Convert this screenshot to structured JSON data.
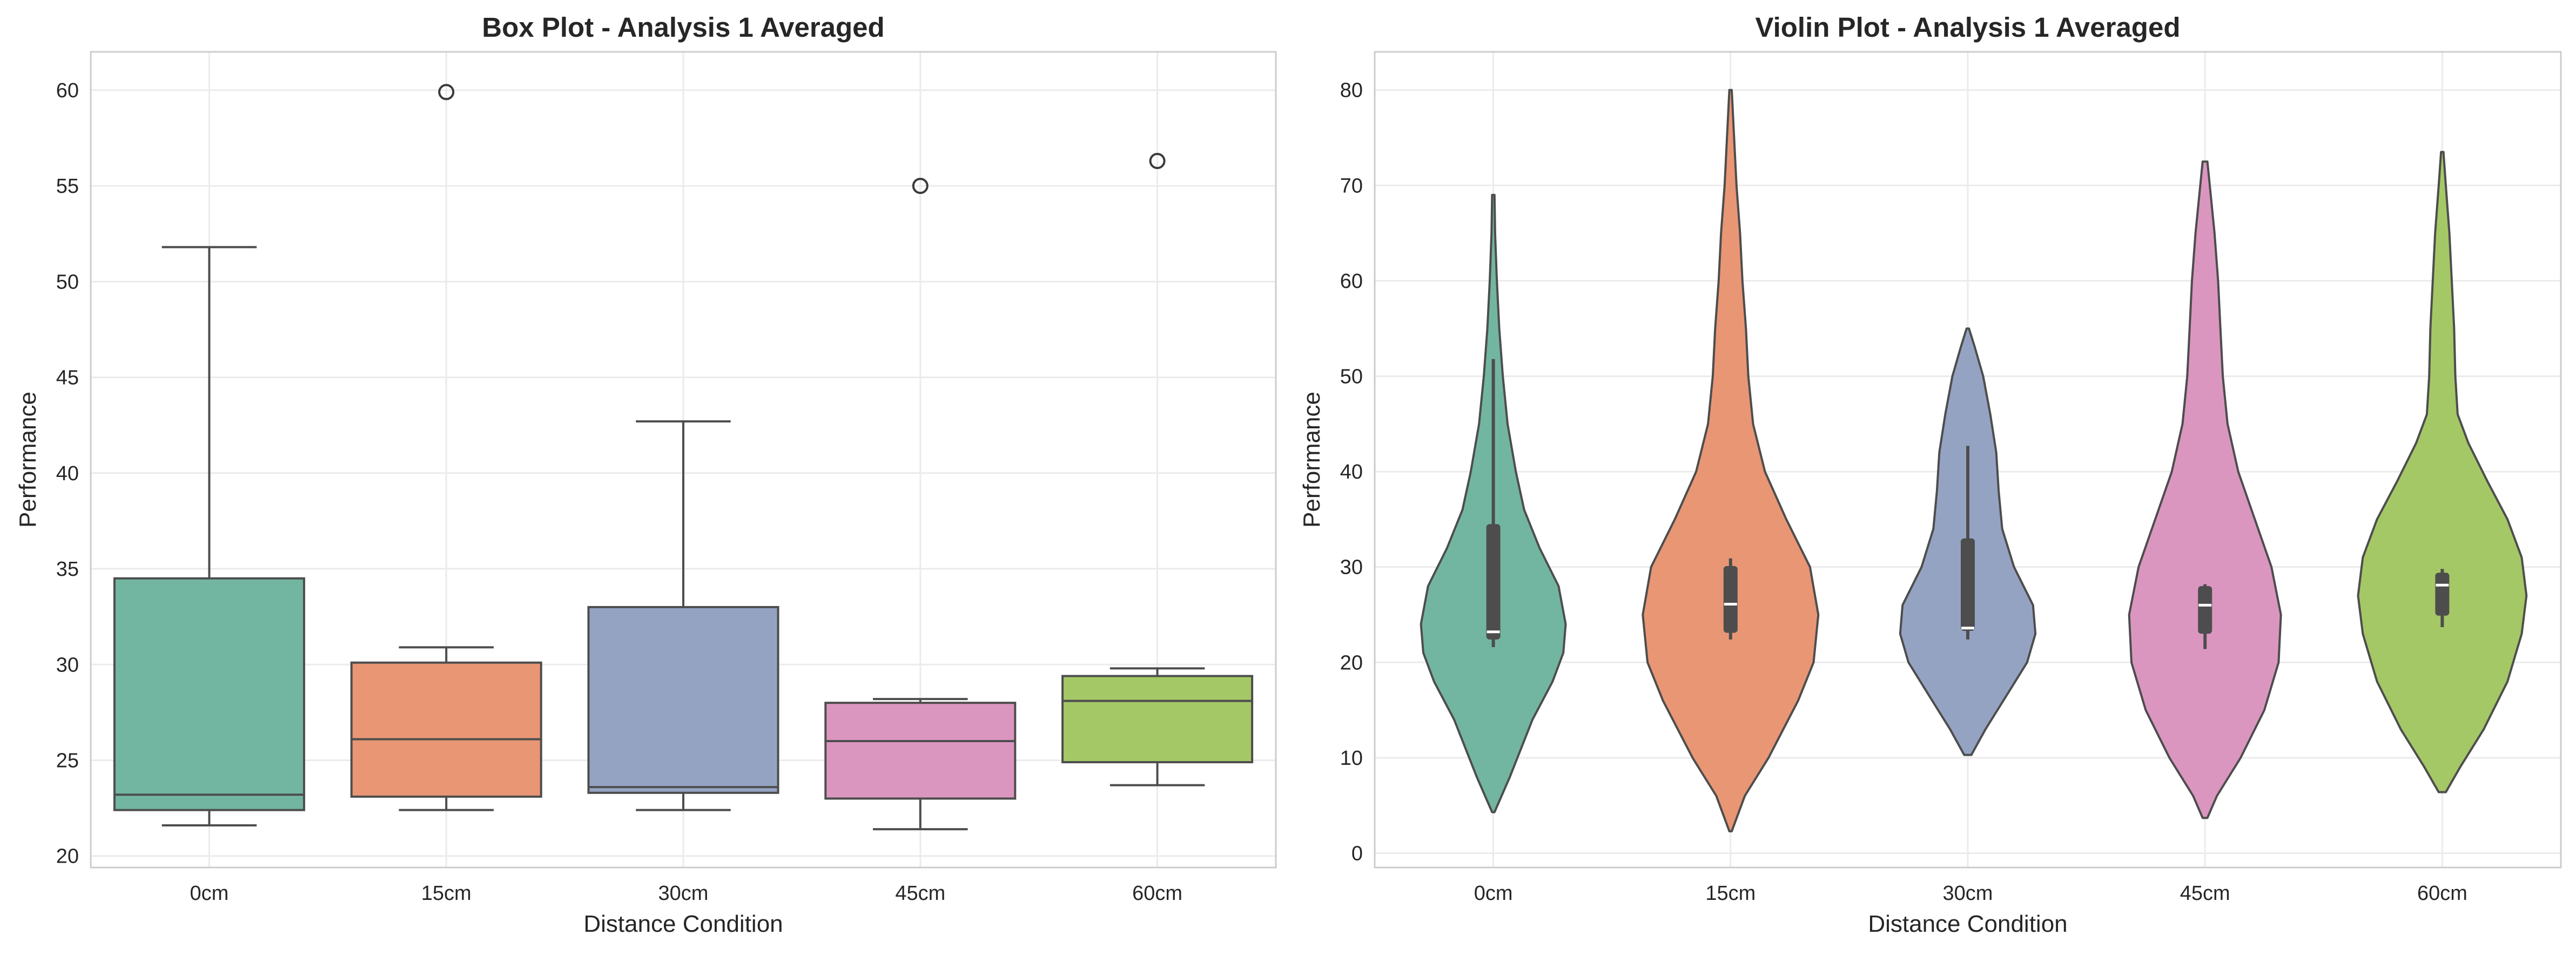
{
  "chart_data": [
    {
      "type": "box",
      "title": "Box Plot - Analysis 1 Averaged",
      "xlabel": "Distance Condition",
      "ylabel": "Performance",
      "categories": [
        "0cm",
        "15cm",
        "30cm",
        "45cm",
        "60cm"
      ],
      "colors": [
        "#72b6a1",
        "#e99675",
        "#95a3c3",
        "#db96c0",
        "#a4c866"
      ],
      "ylim": [
        19.4,
        62.0
      ],
      "yticks": [
        20,
        25,
        30,
        35,
        40,
        45,
        50,
        55,
        60
      ],
      "grid": true,
      "boxes": [
        {
          "category": "0cm",
          "whisker_low": 21.6,
          "q1": 22.4,
          "median": 23.2,
          "q3": 34.5,
          "whisker_high": 51.8,
          "outliers": []
        },
        {
          "category": "15cm",
          "whisker_low": 22.4,
          "q1": 23.1,
          "median": 26.1,
          "q3": 30.1,
          "whisker_high": 30.9,
          "outliers": [
            59.9
          ]
        },
        {
          "category": "30cm",
          "whisker_low": 22.4,
          "q1": 23.3,
          "median": 23.6,
          "q3": 33.0,
          "whisker_high": 42.7,
          "outliers": []
        },
        {
          "category": "45cm",
          "whisker_low": 21.4,
          "q1": 23.0,
          "median": 26.0,
          "q3": 28.0,
          "whisker_high": 28.2,
          "outliers": [
            55.0
          ]
        },
        {
          "category": "60cm",
          "whisker_low": 23.7,
          "q1": 24.9,
          "median": 28.1,
          "q3": 29.4,
          "whisker_high": 29.8,
          "outliers": [
            56.3
          ]
        }
      ]
    },
    {
      "type": "violin",
      "title": "Violin Plot - Analysis 1 Averaged",
      "xlabel": "Distance Condition",
      "ylabel": "Performance",
      "categories": [
        "0cm",
        "15cm",
        "30cm",
        "45cm",
        "60cm"
      ],
      "colors": [
        "#72b6a1",
        "#e99675",
        "#95a3c3",
        "#db96c0",
        "#a4c866"
      ],
      "ylim": [
        -1.5,
        84.0
      ],
      "yticks": [
        0,
        10,
        20,
        30,
        40,
        50,
        60,
        70,
        80
      ],
      "grid": true,
      "violins": [
        {
          "category": "0cm",
          "median": 23.2,
          "q1": 22.4,
          "q3": 34.5,
          "whisker_low": 21.6,
          "whisker_high": 51.8,
          "density_half_width": [
            [
              4.3,
              0.01
            ],
            [
              8,
              0.14
            ],
            [
              14,
              0.33
            ],
            [
              18,
              0.5
            ],
            [
              21,
              0.59
            ],
            [
              24,
              0.61
            ],
            [
              28,
              0.55
            ],
            [
              32,
              0.39
            ],
            [
              36,
              0.26
            ],
            [
              40,
              0.19
            ],
            [
              45,
              0.12
            ],
            [
              50,
              0.08
            ],
            [
              55,
              0.05
            ],
            [
              60,
              0.03
            ],
            [
              65,
              0.015
            ],
            [
              69,
              0.01
            ]
          ]
        },
        {
          "category": "15cm",
          "median": 26.1,
          "q1": 23.1,
          "q3": 30.1,
          "whisker_low": 22.4,
          "whisker_high": 30.9,
          "density_half_width": [
            [
              2.3,
              0.01
            ],
            [
              6,
              0.12
            ],
            [
              10,
              0.32
            ],
            [
              16,
              0.57
            ],
            [
              20,
              0.7
            ],
            [
              25,
              0.74
            ],
            [
              30,
              0.67
            ],
            [
              35,
              0.47
            ],
            [
              40,
              0.29
            ],
            [
              45,
              0.19
            ],
            [
              50,
              0.15
            ],
            [
              55,
              0.13
            ],
            [
              60,
              0.1
            ],
            [
              65,
              0.08
            ],
            [
              70,
              0.05
            ],
            [
              75,
              0.03
            ],
            [
              80,
              0.01
            ]
          ]
        },
        {
          "category": "30cm",
          "median": 23.6,
          "q1": 23.3,
          "q3": 33.0,
          "whisker_low": 22.4,
          "whisker_high": 42.7,
          "density_half_width": [
            [
              10.3,
              0.03
            ],
            [
              13,
              0.15
            ],
            [
              17,
              0.35
            ],
            [
              20,
              0.5
            ],
            [
              23,
              0.57
            ],
            [
              26,
              0.55
            ],
            [
              30,
              0.39
            ],
            [
              34,
              0.29
            ],
            [
              38,
              0.26
            ],
            [
              42,
              0.24
            ],
            [
              46,
              0.19
            ],
            [
              50,
              0.13
            ],
            [
              53,
              0.06
            ],
            [
              55,
              0.01
            ]
          ]
        },
        {
          "category": "45cm",
          "median": 26.0,
          "q1": 23.0,
          "q3": 28.0,
          "whisker_low": 21.4,
          "whisker_high": 28.2,
          "density_half_width": [
            [
              3.7,
              0.02
            ],
            [
              6,
              0.1
            ],
            [
              10,
              0.3
            ],
            [
              15,
              0.5
            ],
            [
              20,
              0.62
            ],
            [
              25,
              0.64
            ],
            [
              30,
              0.56
            ],
            [
              35,
              0.42
            ],
            [
              40,
              0.28
            ],
            [
              45,
              0.19
            ],
            [
              50,
              0.15
            ],
            [
              55,
              0.13
            ],
            [
              60,
              0.11
            ],
            [
              65,
              0.08
            ],
            [
              70,
              0.04
            ],
            [
              72.5,
              0.02
            ]
          ]
        },
        {
          "category": "60cm",
          "median": 28.1,
          "q1": 24.9,
          "q3": 29.4,
          "whisker_low": 23.7,
          "whisker_high": 29.8,
          "density_half_width": [
            [
              6.4,
              0.03
            ],
            [
              9,
              0.15
            ],
            [
              13,
              0.35
            ],
            [
              18,
              0.55
            ],
            [
              23,
              0.67
            ],
            [
              27,
              0.71
            ],
            [
              31,
              0.67
            ],
            [
              35,
              0.55
            ],
            [
              39,
              0.38
            ],
            [
              43,
              0.22
            ],
            [
              46,
              0.13
            ],
            [
              50,
              0.11
            ],
            [
              55,
              0.1
            ],
            [
              60,
              0.08
            ],
            [
              65,
              0.06
            ],
            [
              70,
              0.03
            ],
            [
              73.5,
              0.01
            ]
          ]
        }
      ]
    }
  ]
}
